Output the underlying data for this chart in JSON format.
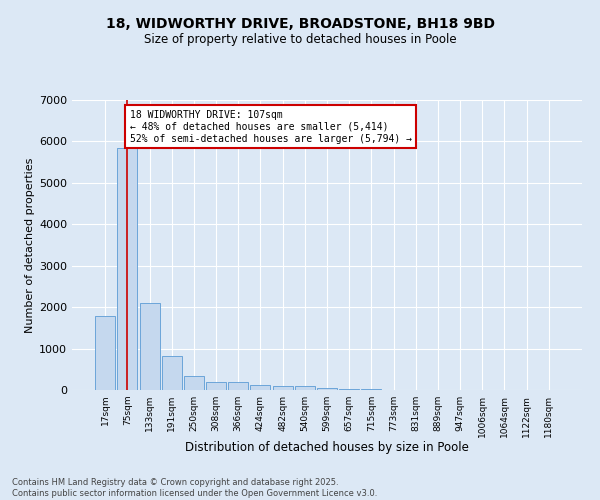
{
  "title1": "18, WIDWORTHY DRIVE, BROADSTONE, BH18 9BD",
  "title2": "Size of property relative to detached houses in Poole",
  "xlabel": "Distribution of detached houses by size in Poole",
  "ylabel": "Number of detached properties",
  "bar_labels": [
    "17sqm",
    "75sqm",
    "133sqm",
    "191sqm",
    "250sqm",
    "308sqm",
    "366sqm",
    "424sqm",
    "482sqm",
    "540sqm",
    "599sqm",
    "657sqm",
    "715sqm",
    "773sqm",
    "831sqm",
    "889sqm",
    "947sqm",
    "1006sqm",
    "1064sqm",
    "1122sqm",
    "1180sqm"
  ],
  "bar_values": [
    1780,
    5850,
    2090,
    820,
    340,
    200,
    195,
    120,
    105,
    90,
    55,
    30,
    20,
    8,
    5,
    3,
    2,
    1,
    1,
    0,
    0
  ],
  "bar_color": "#c5d8ee",
  "bar_edge_color": "#5b9bd5",
  "vline_x_index": 1,
  "vline_color": "#cc0000",
  "annotation_text": "18 WIDWORTHY DRIVE: 107sqm\n← 48% of detached houses are smaller (5,414)\n52% of semi-detached houses are larger (5,794) →",
  "annotation_box_facecolor": "#ffffff",
  "annotation_box_edgecolor": "#cc0000",
  "bg_color": "#dce8f5",
  "plot_bg_color": "#dce8f5",
  "footer_text": "Contains HM Land Registry data © Crown copyright and database right 2025.\nContains public sector information licensed under the Open Government Licence v3.0.",
  "ylim": [
    0,
    7000
  ],
  "yticks": [
    0,
    1000,
    2000,
    3000,
    4000,
    5000,
    6000,
    7000
  ],
  "title1_fontsize": 10,
  "title2_fontsize": 8.5
}
